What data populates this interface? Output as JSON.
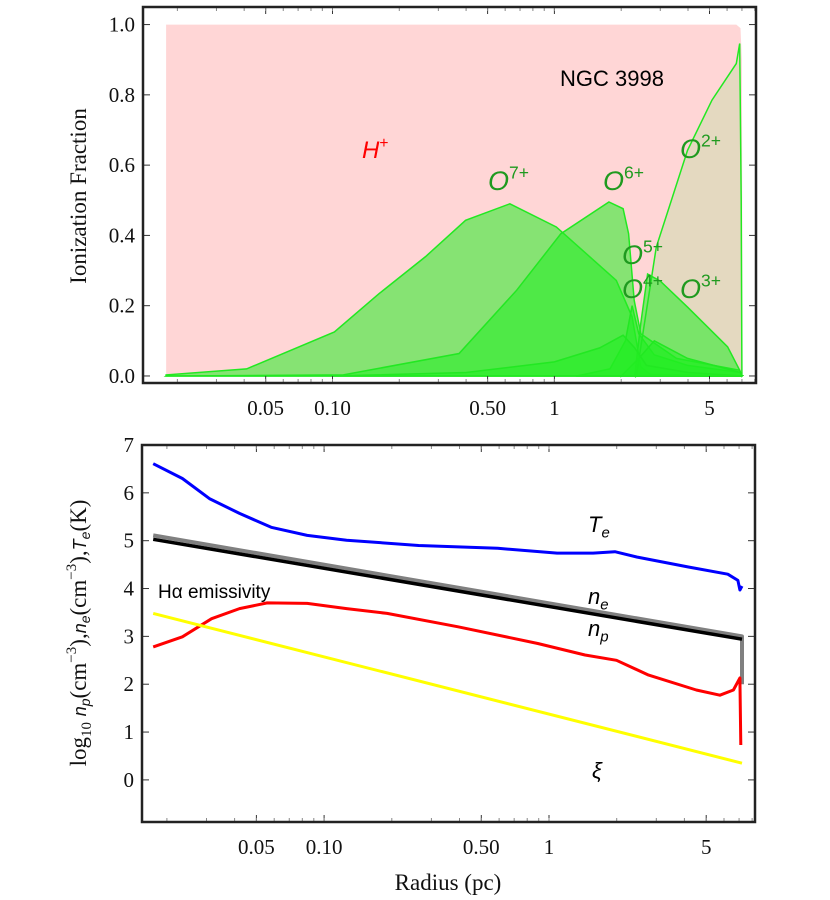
{
  "chart_data": [
    {
      "type": "area",
      "title": "NGC 3998",
      "xlabel": "",
      "ylabel": "Ionization Fraction",
      "xscale": "log",
      "xlim": [
        0.014,
        8.1
      ],
      "ylim": [
        -0.02,
        1.05
      ],
      "xticks": [
        0.05,
        0.1,
        0.5,
        1,
        5
      ],
      "xtick_labels": [
        "0.05",
        "0.10",
        "0.50",
        "1",
        "5"
      ],
      "yticks": [
        0,
        0.2,
        0.4,
        0.6,
        0.8,
        1.0
      ],
      "ytick_labels": [
        "0.0",
        "0.2",
        "0.4",
        "0.6",
        "0.8",
        "1.0"
      ],
      "colors": {
        "hplus_fill": "#ffd6d6",
        "oxygen_fill": "#22ee22",
        "oxygen_line": "#22e822",
        "hplus_label": "#ff0000",
        "oxygen_label": "#1f9a1f"
      },
      "series": [
        {
          "name": "H+",
          "label_base": "H",
          "label_sup": "+",
          "color": "#ffd6d6",
          "x": [
            0.0178,
            0.02,
            6.6,
            6.9,
            7.0,
            7.05
          ],
          "y": [
            1.0,
            1.0,
            1.0,
            0.99,
            0.9,
            0.0
          ]
        },
        {
          "name": "O7+",
          "label_base": "O",
          "label_sup": "7+",
          "x": [
            0.0178,
            0.041,
            0.102,
            0.162,
            0.263,
            0.398,
            0.63,
            1.02,
            1.9,
            2.24,
            2.45,
            2.7,
            7.0
          ],
          "y": [
            0.003,
            0.02,
            0.125,
            0.234,
            0.34,
            0.443,
            0.49,
            0.424,
            0.272,
            0.168,
            0.026,
            0.005,
            0.0
          ]
        },
        {
          "name": "O6+",
          "label_base": "O",
          "label_sup": "6+",
          "x": [
            0.0178,
            0.112,
            0.372,
            0.676,
            1.07,
            1.76,
            2.04,
            2.16,
            2.29,
            2.45,
            3.55,
            6.84,
            7.0
          ],
          "y": [
            0.0,
            0.003,
            0.064,
            0.244,
            0.405,
            0.495,
            0.476,
            0.405,
            0.215,
            0.12,
            0.05,
            0.016,
            0.0
          ]
        },
        {
          "name": "O5+",
          "label_base": "O",
          "label_sup": "5+",
          "x": [
            1.26,
            1.78,
            2.09,
            2.24,
            2.4,
            2.82,
            3.98,
            6.9,
            7.0
          ],
          "y": [
            0.0,
            0.02,
            0.1,
            0.2,
            0.12,
            0.06,
            0.03,
            0.01,
            0.0
          ]
        },
        {
          "name": "O4+",
          "label_base": "O",
          "label_sup": "4+",
          "x": [
            2.3,
            2.45,
            2.63,
            3.0,
            3.98,
            6.03,
            6.84,
            7.0
          ],
          "y": [
            0.0,
            0.15,
            0.29,
            0.27,
            0.196,
            0.083,
            0.016,
            0.0
          ]
        },
        {
          "name": "O3+",
          "label_base": "O",
          "label_sup": "3+",
          "x": [
            2.0,
            2.4,
            2.82,
            3.98,
            6.9,
            7.0
          ],
          "y": [
            0.0,
            0.05,
            0.1,
            0.05,
            0.01,
            0.0
          ]
        },
        {
          "name": "O2+",
          "label_base": "O",
          "label_sup": "2+",
          "x": [
            2.34,
            2.88,
            3.98,
            5.13,
            6.6,
            6.84,
            6.95,
            7.0
          ],
          "y": [
            0.0,
            0.367,
            0.642,
            0.785,
            0.889,
            0.946,
            0.5,
            0.0
          ]
        },
        {
          "x": [
            0.1,
            0.4,
            1.0,
            1.6,
            2.04,
            2.3,
            2.6,
            4.0,
            7.0
          ],
          "y": [
            0.0,
            0.01,
            0.04,
            0.08,
            0.116,
            0.08,
            0.03,
            0.01,
            0.0
          ]
        }
      ]
    },
    {
      "type": "line",
      "xlabel": "Radius (pc)",
      "ylabel": "log10 np(cm−3), ne(cm−3), Te(K)",
      "ylabel_parts": [
        {
          "t": "log",
          "s": "n"
        },
        {
          "t": "10",
          "s": "sub"
        },
        {
          "t": " ",
          "s": "n"
        },
        {
          "t": "n",
          "s": "it"
        },
        {
          "t": "p",
          "s": "itsub"
        },
        {
          "t": "(cm",
          "s": "n"
        },
        {
          "t": "−3",
          "s": "sup"
        },
        {
          "t": "),",
          "s": "n"
        },
        {
          "t": "n",
          "s": "it"
        },
        {
          "t": "e",
          "s": "itsub"
        },
        {
          "t": "(cm",
          "s": "n"
        },
        {
          "t": "−3",
          "s": "sup"
        },
        {
          "t": "),",
          "s": "n"
        },
        {
          "t": "T",
          "s": "it"
        },
        {
          "t": "e",
          "s": "itsub"
        },
        {
          "t": "(K)",
          "s": "n"
        }
      ],
      "xscale": "log",
      "xlim": [
        0.0155,
        8.24
      ],
      "ylim": [
        -0.88,
        7.0
      ],
      "xticks": [
        0.05,
        0.1,
        0.5,
        1,
        5
      ],
      "xtick_labels": [
        "0.05",
        "0.10",
        "0.50",
        "1",
        "5"
      ],
      "yticks": [
        0,
        1,
        2,
        3,
        4,
        5,
        6,
        7
      ],
      "ytick_labels": [
        "0",
        "1",
        "2",
        "3",
        "4",
        "5",
        "6",
        "7"
      ],
      "series": [
        {
          "name": "Te",
          "label_base": "T",
          "label_sub": "e",
          "color": "#0000ff",
          "width": 3,
          "logx": [
            -1.76,
            -1.63,
            -1.51,
            -1.376,
            -1.235,
            -1.075,
            -0.9,
            -0.58,
            -0.228,
            0.036,
            0.196,
            0.293,
            0.39,
            0.62,
            0.795,
            0.84,
            0.849,
            0.858
          ],
          "y": [
            6.61,
            6.3,
            5.88,
            5.57,
            5.28,
            5.11,
            5.01,
            4.9,
            4.84,
            4.74,
            4.74,
            4.77,
            4.66,
            4.45,
            4.3,
            4.17,
            3.97,
            4.05
          ]
        },
        {
          "name": "ne",
          "label_base": "n",
          "label_sub": "e",
          "color": "#808080",
          "width": 4,
          "logx": [
            -1.76,
            0.858,
            0.858
          ],
          "y": [
            5.11,
            3.0,
            2.0
          ]
        },
        {
          "name": "np",
          "label_base": "n",
          "label_sub": "p",
          "color": "#000000",
          "width": 3.5,
          "logx": [
            -1.76,
            0.858
          ],
          "y": [
            5.03,
            2.94
          ]
        },
        {
          "name": "Hα emissivity",
          "color": "#ff0000",
          "width": 3,
          "logx": [
            -1.76,
            -1.63,
            -1.5,
            -1.376,
            -1.253,
            -1.075,
            -0.9,
            -0.72,
            -0.404,
            -0.05,
            0.16,
            0.3,
            0.443,
            0.655,
            0.76,
            0.82,
            0.849,
            0.853
          ],
          "y": [
            2.78,
            2.99,
            3.37,
            3.58,
            3.7,
            3.69,
            3.58,
            3.48,
            3.2,
            2.85,
            2.61,
            2.5,
            2.19,
            1.88,
            1.77,
            1.88,
            2.13,
            0.73
          ]
        },
        {
          "name": "ξ",
          "label_base": "ξ",
          "color": "#ffff00",
          "width": 3,
          "logx": [
            -1.76,
            0.858
          ],
          "y": [
            3.48,
            0.35
          ]
        }
      ]
    }
  ]
}
